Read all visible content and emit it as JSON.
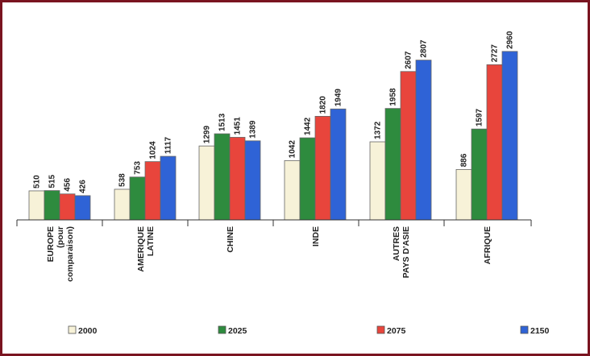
{
  "chart_data": {
    "type": "bar",
    "categories": [
      [
        "EUROPE",
        "(pour",
        "comparaison)"
      ],
      [
        "AMERIQUE",
        "LATINE"
      ],
      [
        "CHINE"
      ],
      [
        "INDE"
      ],
      [
        "AUTRES",
        "PAYS D'ASIE"
      ],
      [
        "AFRIQUE"
      ]
    ],
    "series": [
      {
        "name": "2000",
        "color": "#f7f2d8",
        "values": [
          510,
          538,
          1299,
          1042,
          1372,
          886
        ]
      },
      {
        "name": "2025",
        "color": "#2e8b3e",
        "values": [
          515,
          753,
          1513,
          1442,
          1958,
          1597
        ]
      },
      {
        "name": "2075",
        "color": "#e8453c",
        "values": [
          456,
          1024,
          1451,
          1820,
          2607,
          2727
        ]
      },
      {
        "name": "2150",
        "color": "#2f63d6",
        "values": [
          426,
          1117,
          1389,
          1949,
          2807,
          2960
        ]
      }
    ],
    "value_labels": [
      [
        "510",
        "515",
        "456",
        "426"
      ],
      [
        "538",
        "753",
        "1024",
        "1117"
      ],
      [
        "1299",
        "1513",
        "1451",
        "1389"
      ],
      [
        "1042",
        "1442",
        "1820",
        "1949"
      ],
      [
        "1372",
        "1958",
        "2607",
        "2807"
      ],
      [
        "886",
        "1597",
        "2727",
        "2960"
      ]
    ],
    "title": "",
    "xlabel": "",
    "ylabel": "",
    "ylim": [
      0,
      3100
    ],
    "grid": false,
    "legend": "bottom"
  }
}
